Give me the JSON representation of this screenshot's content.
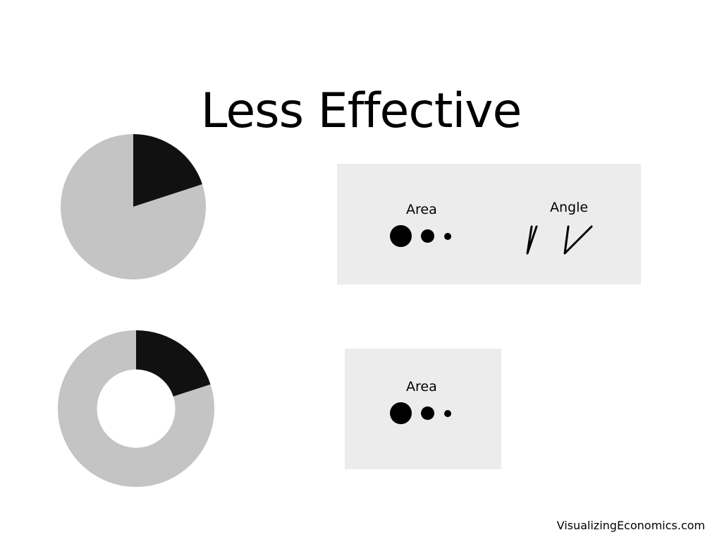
{
  "slide": {
    "title": "Less Effective"
  },
  "colors": {
    "background": "#ffffff",
    "dark": "#111111",
    "light": "#c4c4c4",
    "panel": "#ececec"
  },
  "charts": {
    "pie": {
      "type": "pie",
      "slices": [
        {
          "share": 0.2,
          "color": "#111111"
        },
        {
          "share": 0.8,
          "color": "#c4c4c4"
        }
      ]
    },
    "donut": {
      "type": "donut",
      "slices": [
        {
          "share": 0.2,
          "color": "#111111"
        },
        {
          "share": 0.8,
          "color": "#c4c4c4"
        }
      ]
    }
  },
  "panels": {
    "top": {
      "area_label": "Area",
      "angle_label": "Angle"
    },
    "bottom": {
      "area_label": "Area"
    }
  },
  "footer": {
    "credit": "VisualizingEconomics.com"
  }
}
